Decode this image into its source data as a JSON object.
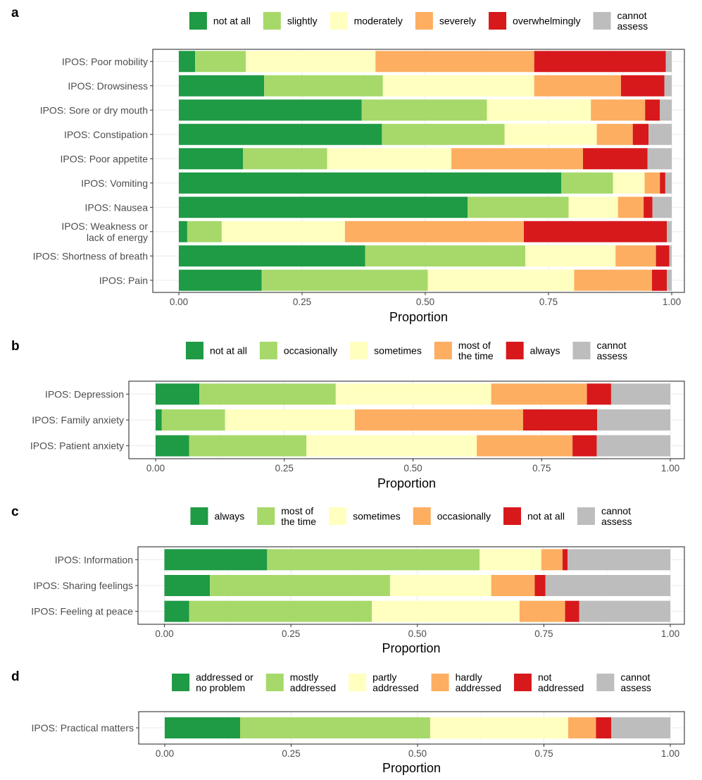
{
  "chart_data": [
    {
      "type": "bar",
      "orientation": "horizontal",
      "stacked": true,
      "panel": "a",
      "xlabel": "Proportion",
      "xlim": [
        0,
        1
      ],
      "xticks": [
        "0.00",
        "0.25",
        "0.50",
        "0.75",
        "1.00"
      ],
      "legend": [
        {
          "lines": [
            "not at all"
          ],
          "color": "#1f9a45"
        },
        {
          "lines": [
            "slightly"
          ],
          "color": "#a6d96a"
        },
        {
          "lines": [
            "moderately"
          ],
          "color": "#ffffbf"
        },
        {
          "lines": [
            "severely"
          ],
          "color": "#fdae61"
        },
        {
          "lines": [
            "overwhelmingly"
          ],
          "color": "#d7191c"
        },
        {
          "lines": [
            "cannot",
            "assess"
          ],
          "color": "#bdbdbd"
        }
      ],
      "categories": [
        {
          "lines": [
            "IPOS: Poor mobility"
          ],
          "values": [
            0.033,
            0.103,
            0.263,
            0.322,
            0.267,
            0.012
          ]
        },
        {
          "lines": [
            "IPOS: Drowsiness"
          ],
          "values": [
            0.173,
            0.241,
            0.307,
            0.176,
            0.088,
            0.015
          ]
        },
        {
          "lines": [
            "IPOS: Sore or dry mouth"
          ],
          "values": [
            0.371,
            0.254,
            0.211,
            0.11,
            0.03,
            0.024
          ]
        },
        {
          "lines": [
            "IPOS: Constipation"
          ],
          "values": [
            0.412,
            0.249,
            0.187,
            0.073,
            0.032,
            0.047
          ]
        },
        {
          "lines": [
            "IPOS: Poor appetite"
          ],
          "values": [
            0.13,
            0.171,
            0.252,
            0.267,
            0.131,
            0.049
          ]
        },
        {
          "lines": [
            "IPOS: Vomiting"
          ],
          "values": [
            0.776,
            0.105,
            0.064,
            0.031,
            0.011,
            0.013
          ]
        },
        {
          "lines": [
            "IPOS: Nausea"
          ],
          "values": [
            0.586,
            0.205,
            0.1,
            0.052,
            0.018,
            0.039
          ]
        },
        {
          "lines": [
            "IPOS: Weakness or",
            "lack of energy"
          ],
          "values": [
            0.017,
            0.07,
            0.25,
            0.363,
            0.29,
            0.01
          ]
        },
        {
          "lines": [
            "IPOS: Shortness of breath"
          ],
          "values": [
            0.378,
            0.325,
            0.183,
            0.082,
            0.027,
            0.005
          ]
        },
        {
          "lines": [
            "IPOS: Pain"
          ],
          "values": [
            0.168,
            0.337,
            0.297,
            0.158,
            0.03,
            0.01
          ]
        }
      ]
    },
    {
      "type": "bar",
      "orientation": "horizontal",
      "stacked": true,
      "panel": "b",
      "xlabel": "Proportion",
      "xlim": [
        0,
        1
      ],
      "xticks": [
        "0.00",
        "0.25",
        "0.50",
        "0.75",
        "1.00"
      ],
      "legend": [
        {
          "lines": [
            "not at all"
          ],
          "color": "#1f9a45"
        },
        {
          "lines": [
            "occasionally"
          ],
          "color": "#a6d96a"
        },
        {
          "lines": [
            "sometimes"
          ],
          "color": "#ffffbf"
        },
        {
          "lines": [
            "most of",
            "the time"
          ],
          "color": "#fdae61"
        },
        {
          "lines": [
            "always"
          ],
          "color": "#d7191c"
        },
        {
          "lines": [
            "cannot",
            "assess"
          ],
          "color": "#bdbdbd"
        }
      ],
      "categories": [
        {
          "lines": [
            "IPOS: Depression"
          ],
          "values": [
            0.085,
            0.265,
            0.302,
            0.186,
            0.047,
            0.115
          ]
        },
        {
          "lines": [
            "IPOS: Family anxiety"
          ],
          "values": [
            0.012,
            0.123,
            0.252,
            0.327,
            0.144,
            0.142
          ]
        },
        {
          "lines": [
            "IPOS: Patient anxiety"
          ],
          "values": [
            0.065,
            0.228,
            0.331,
            0.186,
            0.047,
            0.143
          ]
        }
      ]
    },
    {
      "type": "bar",
      "orientation": "horizontal",
      "stacked": true,
      "panel": "c",
      "xlabel": "Proportion",
      "xlim": [
        0,
        1
      ],
      "xticks": [
        "0.00",
        "0.25",
        "0.50",
        "0.75",
        "1.00"
      ],
      "legend": [
        {
          "lines": [
            "always"
          ],
          "color": "#1f9a45"
        },
        {
          "lines": [
            "most of",
            "the time"
          ],
          "color": "#a6d96a"
        },
        {
          "lines": [
            "sometimes"
          ],
          "color": "#ffffbf"
        },
        {
          "lines": [
            "occasionally"
          ],
          "color": "#fdae61"
        },
        {
          "lines": [
            "not at all"
          ],
          "color": "#d7191c"
        },
        {
          "lines": [
            "cannot",
            "assess"
          ],
          "color": "#bdbdbd"
        }
      ],
      "categories": [
        {
          "lines": [
            "IPOS: Information"
          ],
          "values": [
            0.203,
            0.42,
            0.122,
            0.042,
            0.01,
            0.203
          ]
        },
        {
          "lines": [
            "IPOS: Sharing feelings"
          ],
          "values": [
            0.09,
            0.356,
            0.2,
            0.086,
            0.021,
            0.247
          ]
        },
        {
          "lines": [
            "IPOS: Feeling at peace"
          ],
          "values": [
            0.049,
            0.361,
            0.292,
            0.09,
            0.028,
            0.18
          ]
        }
      ]
    },
    {
      "type": "bar",
      "orientation": "horizontal",
      "stacked": true,
      "panel": "d",
      "xlabel": "Proportion",
      "xlim": [
        0,
        1
      ],
      "xticks": [
        "0.00",
        "0.25",
        "0.50",
        "0.75",
        "1.00"
      ],
      "legend": [
        {
          "lines": [
            "addressed or",
            "no problem"
          ],
          "color": "#1f9a45"
        },
        {
          "lines": [
            "mostly",
            "addressed"
          ],
          "color": "#a6d96a"
        },
        {
          "lines": [
            "partly",
            "addressed"
          ],
          "color": "#ffffbf"
        },
        {
          "lines": [
            "hardly",
            "addressed"
          ],
          "color": "#fdae61"
        },
        {
          "lines": [
            "not",
            "addressed"
          ],
          "color": "#d7191c"
        },
        {
          "lines": [
            "cannot",
            "assess"
          ],
          "color": "#bdbdbd"
        }
      ],
      "categories": [
        {
          "lines": [
            "IPOS: Practical matters"
          ],
          "values": [
            0.149,
            0.376,
            0.273,
            0.055,
            0.03,
            0.117
          ]
        }
      ]
    }
  ]
}
